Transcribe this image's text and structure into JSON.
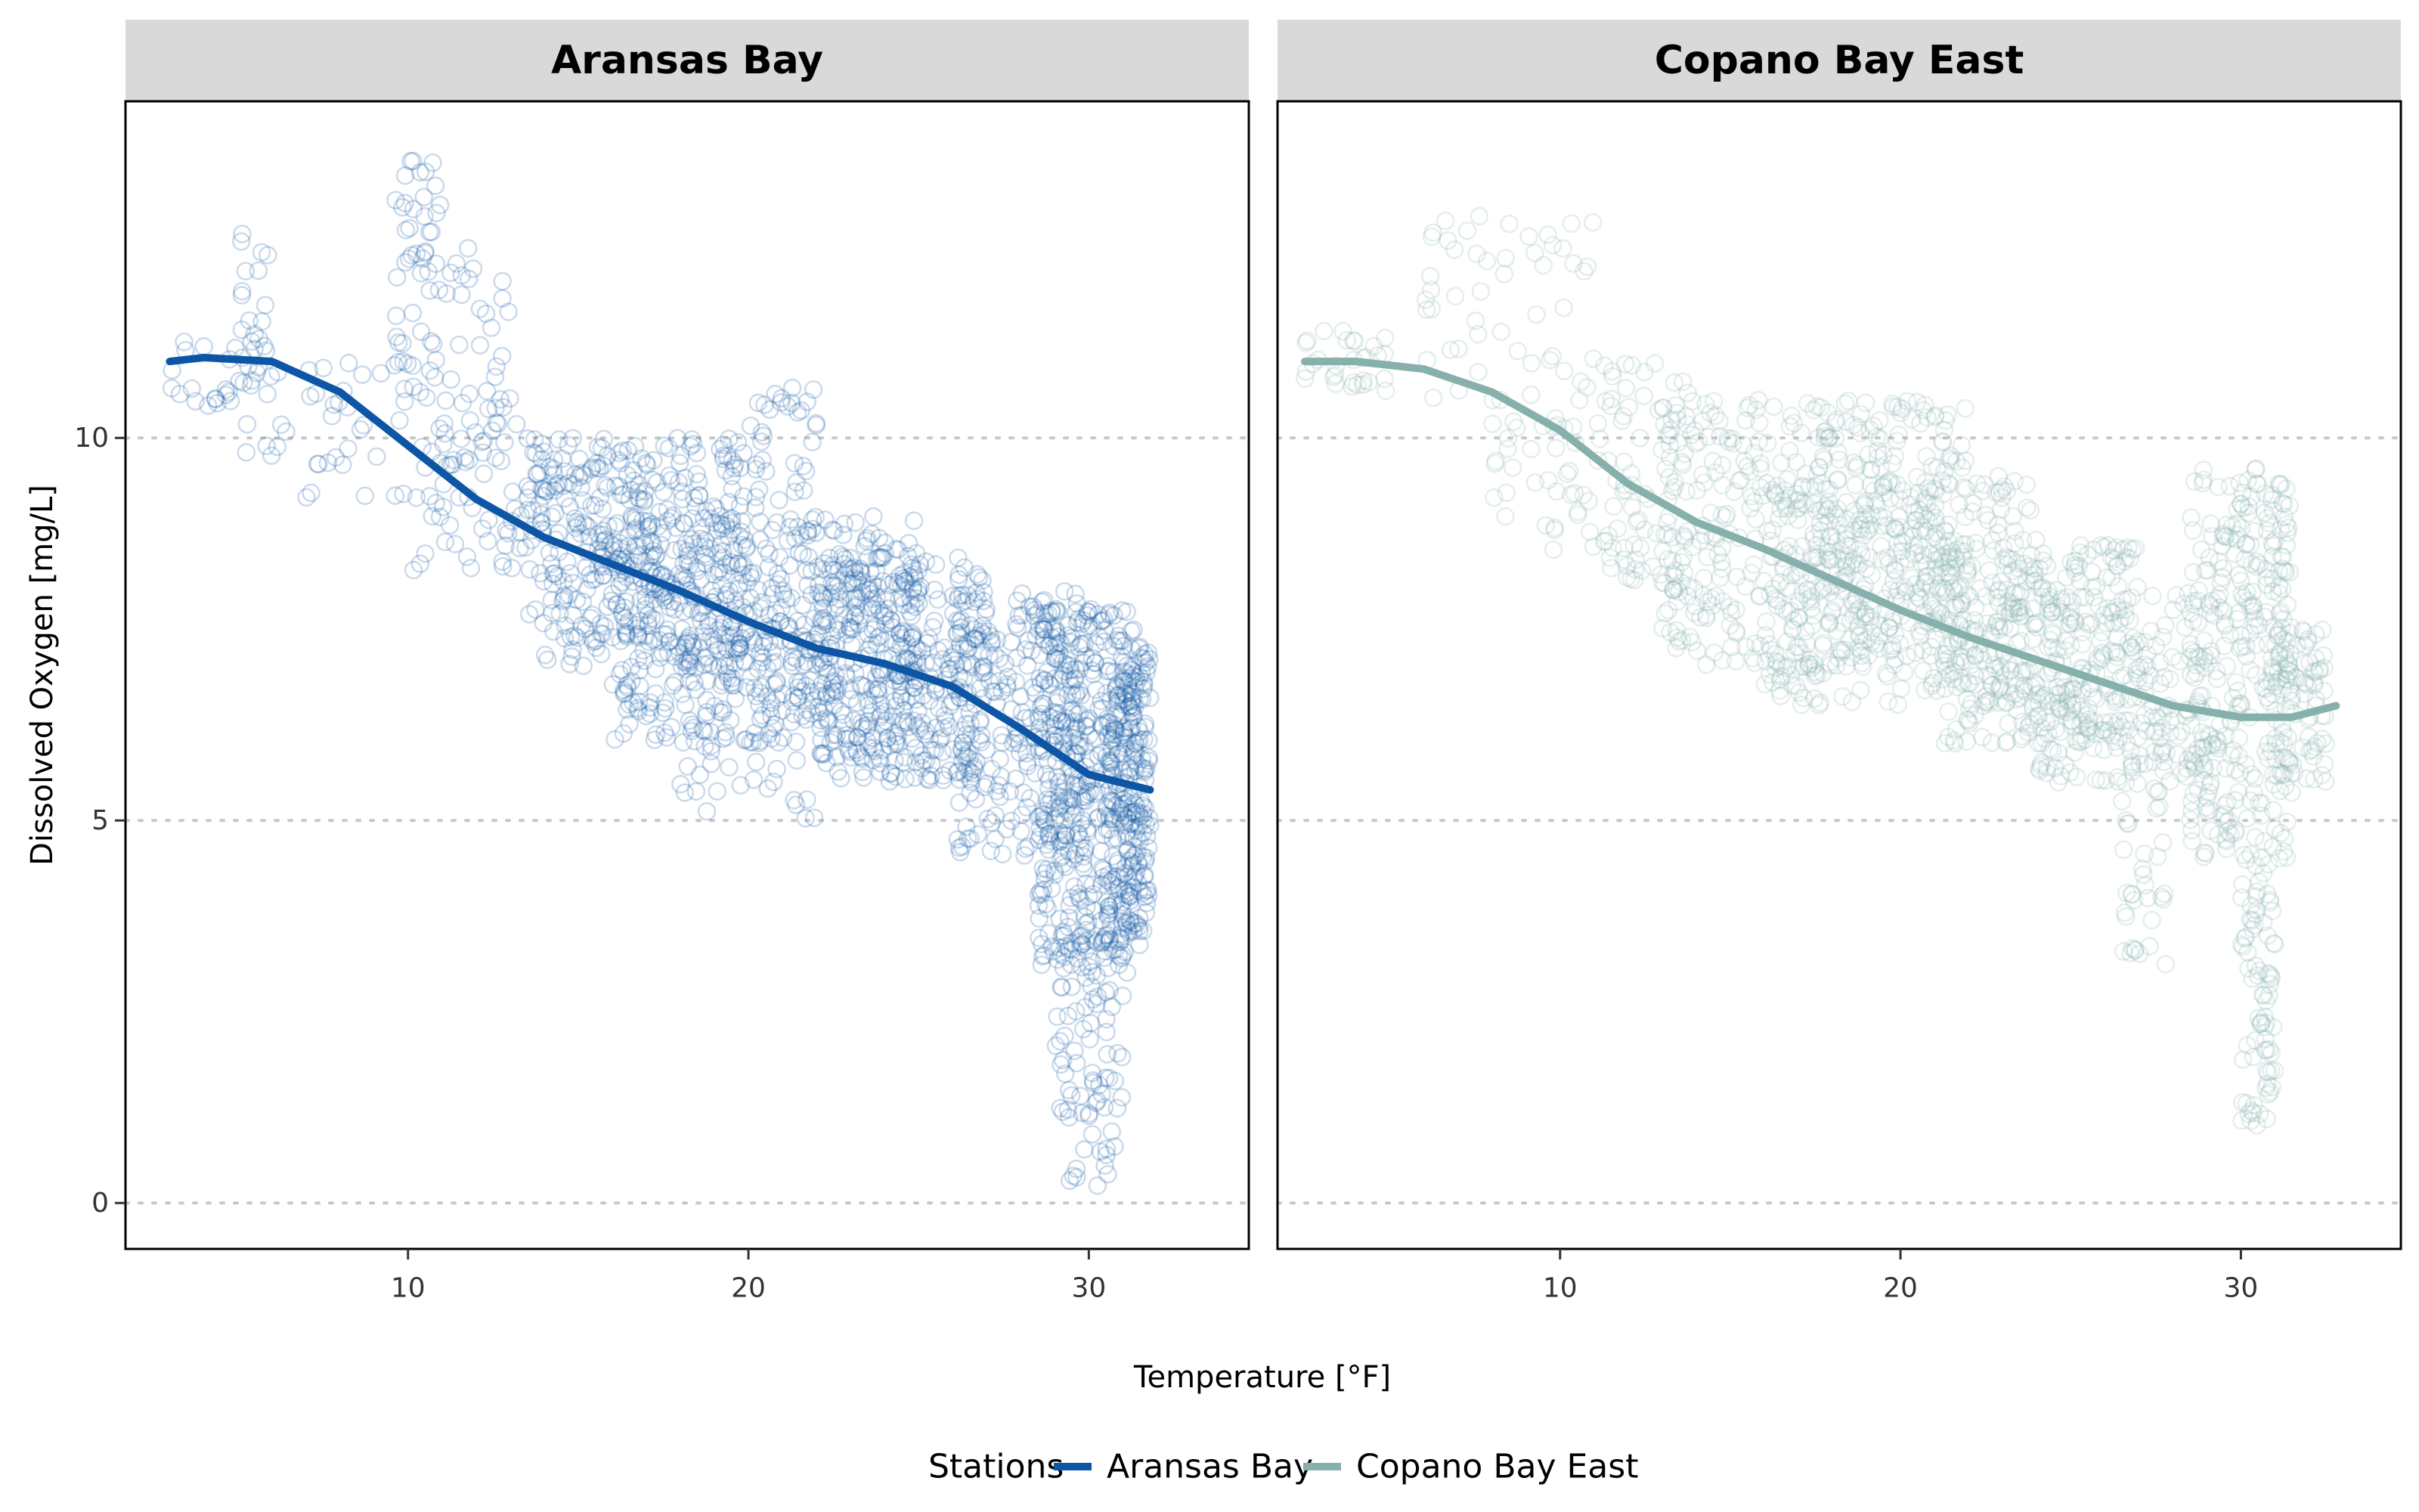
{
  "chart_data": {
    "type": "scatter",
    "facets": [
      {
        "name": "Aransas Bay",
        "color": "#0D55A5",
        "smooth": {
          "x": [
            3,
            4,
            6,
            8,
            10,
            12,
            14,
            16,
            18,
            20,
            22,
            24,
            26,
            28,
            30,
            31.8
          ],
          "y": [
            11.0,
            11.05,
            11.0,
            10.6,
            9.9,
            9.2,
            8.7,
            8.35,
            8.0,
            7.6,
            7.25,
            7.05,
            6.75,
            6.2,
            5.6,
            5.4
          ]
        },
        "clusters": [
          {
            "x": [
              3,
              6
            ],
            "y": [
              10.4,
              11.3
            ],
            "n": 30
          },
          {
            "x": [
              5,
              6
            ],
            "y": [
              11.0,
              12.7
            ],
            "n": 14
          },
          {
            "x": [
              5,
              10
            ],
            "y": [
              9.2,
              11.0
            ],
            "n": 40
          },
          {
            "x": [
              9.5,
              11
            ],
            "y": [
              10.5,
              13.7
            ],
            "n": 50
          },
          {
            "x": [
              10,
              14
            ],
            "y": [
              8.2,
              10.2
            ],
            "n": 60
          },
          {
            "x": [
              11,
              13
            ],
            "y": [
              9.5,
              12.5
            ],
            "n": 40
          },
          {
            "x": [
              13.5,
              20
            ],
            "y": [
              7.0,
              10.0
            ],
            "n": 400
          },
          {
            "x": [
              16,
              25
            ],
            "y": [
              6.0,
              9.0
            ],
            "n": 450
          },
          {
            "x": [
              20,
              22
            ],
            "y": [
              7.0,
              10.7
            ],
            "n": 60
          },
          {
            "x": [
              18,
              22
            ],
            "y": [
              5.0,
              7.5
            ],
            "n": 70
          },
          {
            "x": [
              22,
              27
            ],
            "y": [
              5.5,
              8.5
            ],
            "n": 300
          },
          {
            "x": [
              26,
              30
            ],
            "y": [
              4.5,
              8.0
            ],
            "n": 250
          },
          {
            "x": [
              28.5,
              31.5
            ],
            "y": [
              3.0,
              7.8
            ],
            "n": 350
          },
          {
            "x": [
              29,
              31
            ],
            "y": [
              0.2,
              3.5
            ],
            "n": 90
          },
          {
            "x": [
              30.5,
              31.8
            ],
            "y": [
              3.5,
              7.3
            ],
            "n": 200
          }
        ]
      },
      {
        "name": "Copano Bay East",
        "color": "#86B0AB",
        "smooth": {
          "x": [
            2.5,
            4,
            6,
            8,
            10,
            12,
            14,
            16,
            18,
            20,
            22,
            24,
            26,
            28,
            30,
            31.5,
            32.8
          ],
          "y": [
            11.0,
            11.0,
            10.9,
            10.6,
            10.1,
            9.4,
            8.9,
            8.55,
            8.15,
            7.75,
            7.4,
            7.1,
            6.8,
            6.5,
            6.35,
            6.35,
            6.5
          ]
        },
        "clusters": [
          {
            "x": [
              2.5,
              5
            ],
            "y": [
              10.6,
              11.4
            ],
            "n": 30
          },
          {
            "x": [
              6,
              11
            ],
            "y": [
              10.5,
              13.0
            ],
            "n": 50
          },
          {
            "x": [
              8,
              12
            ],
            "y": [
              8.5,
              10.5
            ],
            "n": 50
          },
          {
            "x": [
              11,
              14
            ],
            "y": [
              8.0,
              11.0
            ],
            "n": 70
          },
          {
            "x": [
              13,
              22
            ],
            "y": [
              7.0,
              10.5
            ],
            "n": 450
          },
          {
            "x": [
              16,
              24
            ],
            "y": [
              6.5,
              9.5
            ],
            "n": 350
          },
          {
            "x": [
              21,
              27
            ],
            "y": [
              6.0,
              8.6
            ],
            "n": 280
          },
          {
            "x": [
              24,
              29
            ],
            "y": [
              5.5,
              8.0
            ],
            "n": 200
          },
          {
            "x": [
              26.5,
              27.8
            ],
            "y": [
              3.1,
              6.0
            ],
            "n": 40
          },
          {
            "x": [
              28.5,
              31.5
            ],
            "y": [
              4.5,
              9.6
            ],
            "n": 300
          },
          {
            "x": [
              30,
              31
            ],
            "y": [
              1.0,
              4.5
            ],
            "n": 80
          },
          {
            "x": [
              31,
              32.5
            ],
            "y": [
              5.5,
              7.5
            ],
            "n": 80
          }
        ]
      }
    ],
    "xlabel": "Temperature [°F]",
    "ylabel": "Dissolved Oxygen [mg/L]",
    "xlim": [
      1.7,
      34.7
    ],
    "ylim": [
      -0.6,
      14.4
    ],
    "xticks": [
      10,
      20,
      30
    ],
    "yticks": [
      0,
      5,
      10
    ],
    "grid": "horizontal dotted at y ticks",
    "legend": {
      "title": "Stations",
      "position": "bottom",
      "entries": [
        {
          "label": "Aransas Bay",
          "color": "#0D55A5"
        },
        {
          "label": "Copano Bay East",
          "color": "#86B0AB"
        }
      ]
    }
  }
}
